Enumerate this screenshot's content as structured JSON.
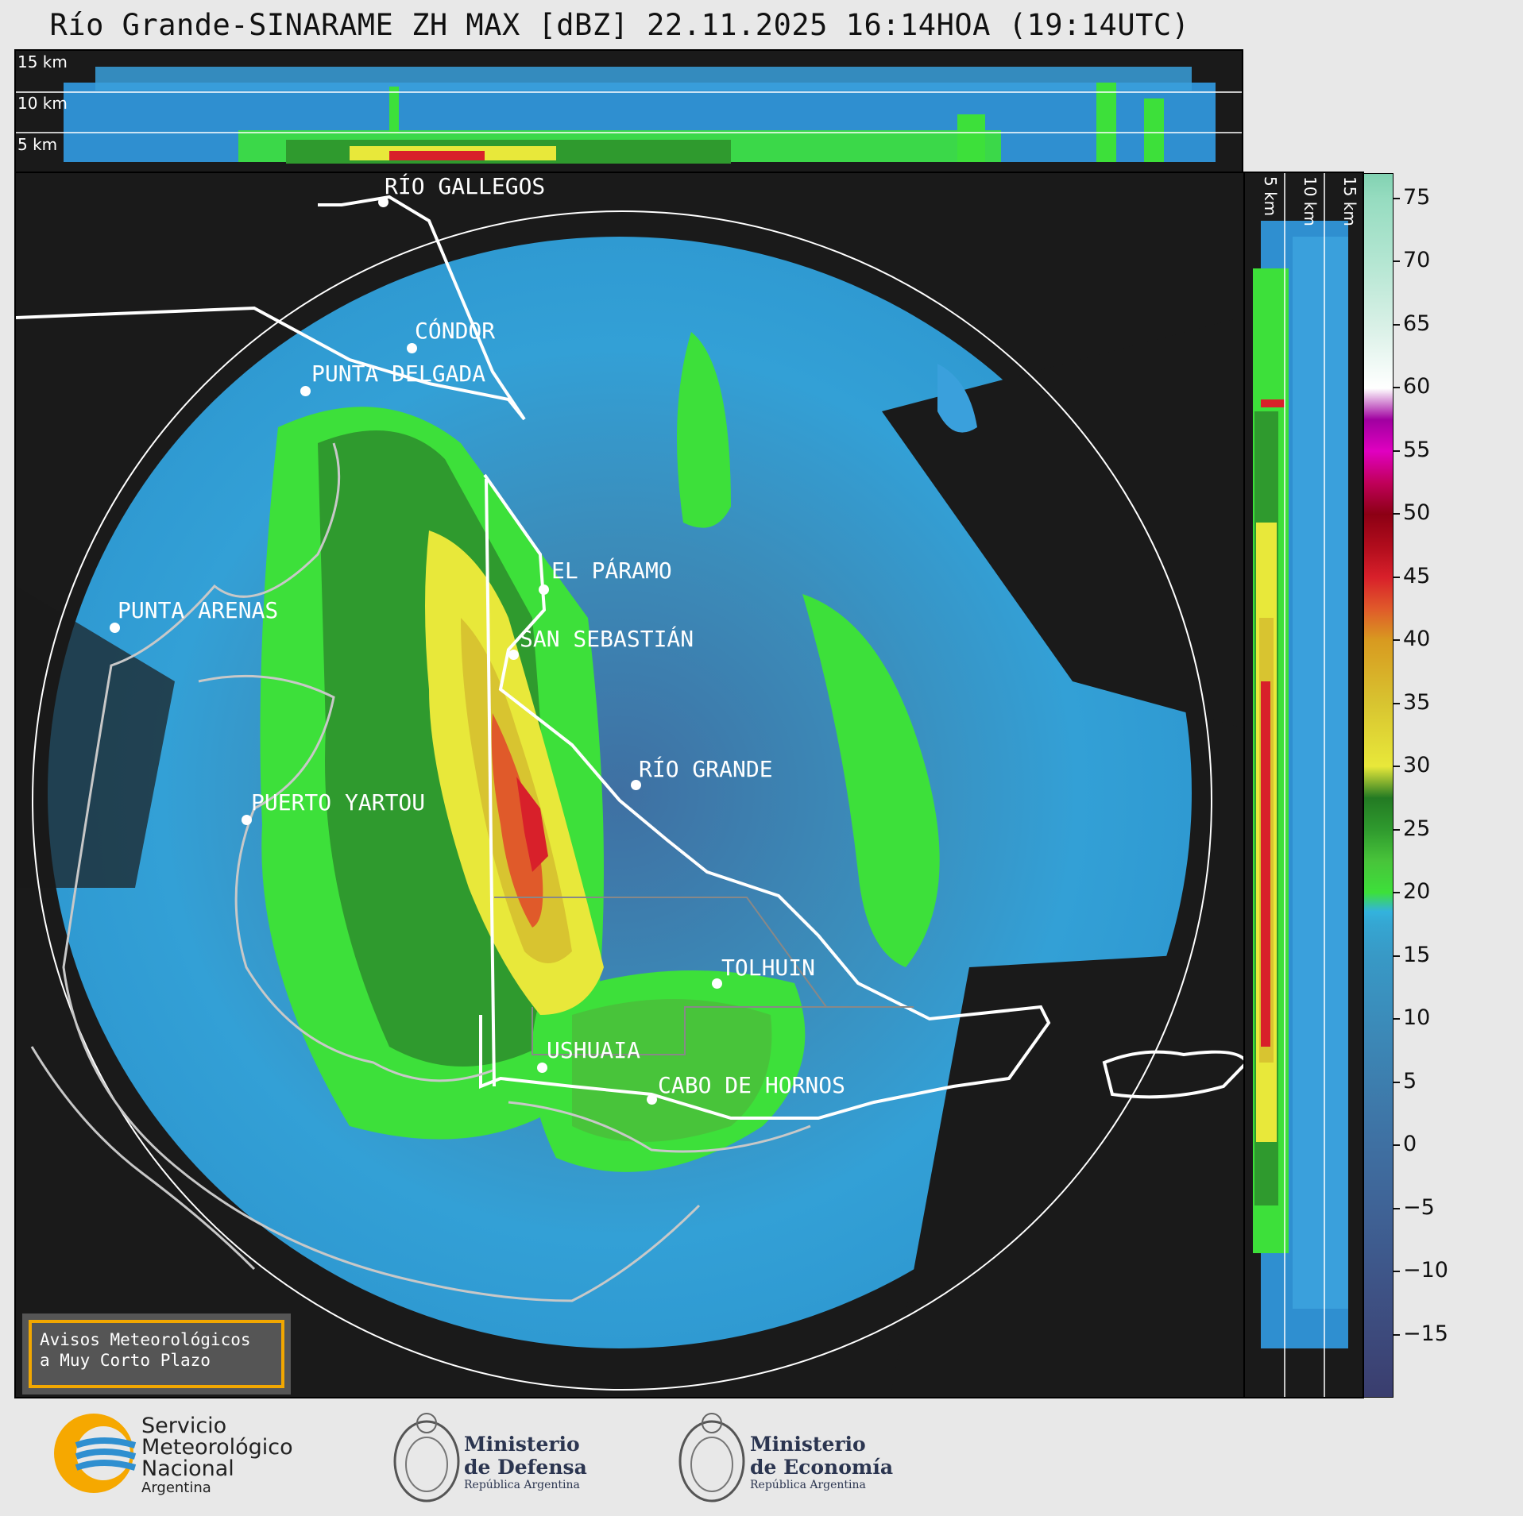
{
  "title": "Río Grande-SINARAME ZH MAX [dBZ] 22.11.2025 16:14HOA (19:14UTC)",
  "top_profile": {
    "labels": [
      "15 km",
      "10 km",
      "5 km"
    ]
  },
  "side_profile": {
    "labels": [
      "5 km",
      "10 km",
      "15 km"
    ]
  },
  "cities": [
    {
      "name": "RÍO GALLEGOS"
    },
    {
      "name": "CÓNDOR"
    },
    {
      "name": "PUNTA DELGADA"
    },
    {
      "name": "EL PÁRAMO"
    },
    {
      "name": "PUNTA ARENAS"
    },
    {
      "name": "SAN SEBASTIÁN"
    },
    {
      "name": "RÍO GRANDE"
    },
    {
      "name": "PUERTO YARTOU"
    },
    {
      "name": "TOLHUIN"
    },
    {
      "name": "USHUAIA"
    },
    {
      "name": "CABO DE HORNOS"
    }
  ],
  "warning": {
    "line1": "Avisos Meteorológicos",
    "line2": "a Muy Corto Plazo"
  },
  "colorbar": {
    "ticks": [
      "75",
      "70",
      "65",
      "60",
      "55",
      "50",
      "45",
      "40",
      "35",
      "30",
      "25",
      "20",
      "15",
      "10",
      "5",
      "0",
      "−5",
      "−10",
      "−15"
    ],
    "colors": [
      "#3a3d6e",
      "#3d4a7c",
      "#3e5689",
      "#3f6396",
      "#3f70a2",
      "#3d7eae",
      "#3b8cba",
      "#3899c6",
      "#35a6d2",
      "#33b3de",
      "#3de03a",
      "#48c43a",
      "#2f9a2e",
      "#237a23",
      "#e8e83a",
      "#d8c430",
      "#d89a20",
      "#e05a2a",
      "#d8202a",
      "#b00c1c",
      "#8c0014",
      "#c0005a",
      "#e000c0",
      "#a000a0",
      "#ffffff",
      "#d8f0e6",
      "#b4e6d2",
      "#96dcc0",
      "#82d2b2"
    ],
    "color_values": [
      -20,
      -15,
      -10,
      -5,
      0,
      5,
      10,
      15,
      17.5,
      18.5,
      20,
      22.5,
      25,
      27.5,
      30,
      35,
      40,
      42.5,
      45,
      47.5,
      50,
      52.5,
      55,
      57.5,
      60,
      65,
      70,
      75,
      77
    ]
  },
  "logos": {
    "smn": {
      "line1": "Servicio",
      "line2": "Meteorológico",
      "line3": "Nacional",
      "line4": "Argentina"
    },
    "defensa": {
      "line1": "Ministerio",
      "line2": "de Defensa",
      "line3": "República Argentina"
    },
    "economia": {
      "line1": "Ministerio",
      "line2": "de Economía",
      "line3": "República Argentina"
    }
  }
}
